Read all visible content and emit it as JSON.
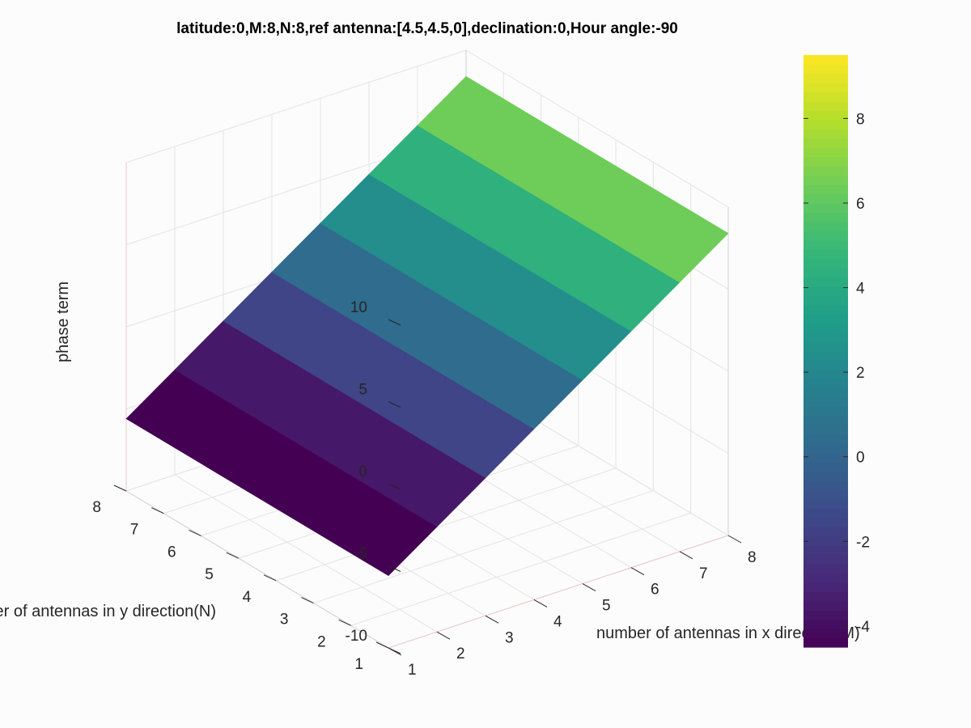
{
  "chart_data": {
    "type": "surface",
    "title": "latitude:0,M:8,N:8,ref antenna:[4.5,4.5,0],declination:0,Hour angle:-90",
    "xlabel": "number of antennas in x direction(M)",
    "ylabel": "number of antennas in y direction(N)",
    "zlabel": "phase term",
    "x": [
      1,
      2,
      3,
      4,
      5,
      6,
      7,
      8
    ],
    "y": [
      1,
      2,
      3,
      4,
      5,
      6,
      7,
      8
    ],
    "z_values": [
      -5.6,
      -3.6,
      -1.6,
      0.4,
      2.4,
      4.4,
      6.4,
      8.4
    ],
    "xlim": [
      1,
      8
    ],
    "ylim": [
      1,
      8
    ],
    "zlim": [
      -10,
      10
    ],
    "x_ticks": [
      "1",
      "2",
      "3",
      "4",
      "5",
      "6",
      "7",
      "8"
    ],
    "y_ticks": [
      "1",
      "2",
      "3",
      "4",
      "5",
      "6",
      "7",
      "8"
    ],
    "z_ticks": [
      "-10",
      "-5",
      "0",
      "5",
      "10"
    ],
    "z_tick_values": [
      -10,
      -5,
      0,
      5,
      10
    ],
    "grid": true,
    "colormap": "viridis",
    "colorbar": {
      "position": "right",
      "range": [
        -4.5,
        9.5
      ],
      "tick_labels": [
        "-4",
        "-2",
        "0",
        "2",
        "4",
        "6",
        "8"
      ],
      "tick_values": [
        -4,
        -2,
        0,
        2,
        4,
        6,
        8
      ]
    }
  }
}
